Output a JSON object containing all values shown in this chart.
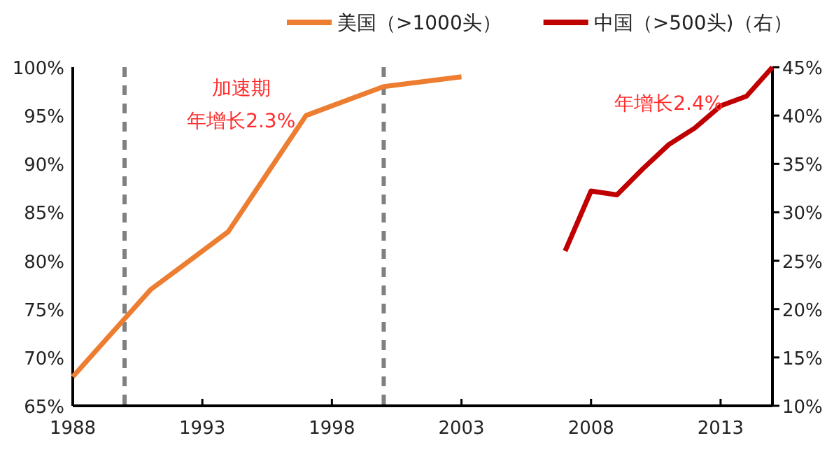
{
  "chart_data": {
    "type": "line",
    "series": [
      {
        "name": "美国（>1000头）",
        "color": "#ed7d31",
        "x": [
          1988,
          1991,
          1994,
          1997,
          2000,
          2003
        ],
        "values": [
          68,
          77,
          83,
          95,
          98,
          99
        ]
      },
      {
        "name": "中国（>500头)（右）",
        "color": "#c00000",
        "axis": "y2",
        "x": [
          2007,
          2008,
          2009,
          2010,
          2011,
          2012,
          2013,
          2014,
          2015
        ],
        "values": [
          26,
          32.2,
          31.8,
          34.5,
          37,
          38.7,
          41,
          42,
          45
        ]
      }
    ],
    "xlim": [
      1988,
      2015
    ],
    "xticks": [
      1988,
      1993,
      1998,
      2003,
      2008,
      2013
    ],
    "ylim": [
      65,
      100
    ],
    "yticks": [
      {
        "value": 65,
        "label": "65%"
      },
      {
        "value": 70,
        "label": "70%"
      },
      {
        "value": 75,
        "label": "75%"
      },
      {
        "value": 80,
        "label": "80%"
      },
      {
        "value": 85,
        "label": "85%"
      },
      {
        "value": 90,
        "label": "90%"
      },
      {
        "value": 95,
        "label": "95%"
      },
      {
        "value": 100,
        "label": "100%"
      }
    ],
    "y2lim": [
      10,
      45
    ],
    "y2ticks": [
      {
        "value": 10,
        "label": "10%"
      },
      {
        "value": 15,
        "label": "15%"
      },
      {
        "value": 20,
        "label": "20%"
      },
      {
        "value": 25,
        "label": "25%"
      },
      {
        "value": 30,
        "label": "30%"
      },
      {
        "value": 35,
        "label": "35%"
      },
      {
        "value": 40,
        "label": "40%"
      },
      {
        "value": 45,
        "label": "45%"
      }
    ],
    "ref_lines": [
      {
        "axis": "x",
        "value": 1990,
        "color": "#808080",
        "line_style": "dashed"
      },
      {
        "axis": "x",
        "value": 2000,
        "color": "#808080",
        "line_style": "dashed"
      }
    ],
    "annotations": [
      "加速期",
      "年增长2.3%",
      "年增长2.4%"
    ],
    "legend": "top",
    "grid": false,
    "marker": "none",
    "line_style": "solid"
  }
}
